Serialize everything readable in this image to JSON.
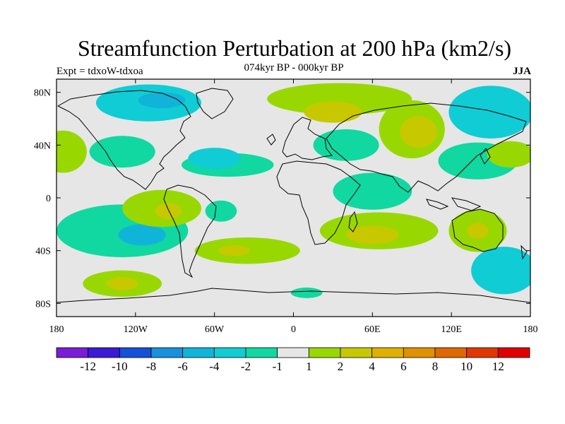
{
  "map": {
    "title": "Streamfunction Perturbation at 200 hPa (km2/s)",
    "subtitle": "074kyr BP - 000kyr BP",
    "left_note": "Expt = tdxoW-tdxoa",
    "right_note": "JJA",
    "projection": "cylindrical equidistant",
    "lon_range": [
      -180,
      180
    ],
    "lat_range": [
      -90,
      90
    ],
    "x_ticks": [
      {
        "lon": -180,
        "label": "180"
      },
      {
        "lon": -120,
        "label": "120W"
      },
      {
        "lon": -60,
        "label": "60W"
      },
      {
        "lon": 0,
        "label": "0"
      },
      {
        "lon": 60,
        "label": "60E"
      },
      {
        "lon": 120,
        "label": "120E"
      },
      {
        "lon": 180,
        "label": "180"
      }
    ],
    "y_ticks": [
      {
        "lat": 80,
        "label": "80N"
      },
      {
        "lat": 40,
        "label": "40N"
      },
      {
        "lat": 0,
        "label": "0"
      },
      {
        "lat": -40,
        "label": "40S"
      },
      {
        "lat": -80,
        "label": "80S"
      }
    ],
    "background_color": "#e6e6e6",
    "colorbar": {
      "colors": [
        "#7a1cd8",
        "#3a1ad6",
        "#1450d8",
        "#1890dc",
        "#10b4d8",
        "#10ccd4",
        "#10d8a0",
        "#e6e6e6",
        "#98d800",
        "#c8c800",
        "#e0b000",
        "#e09000",
        "#e06800",
        "#e03800",
        "#e00000"
      ],
      "labels": [
        "-12",
        "-10",
        "-8",
        "-6",
        "-4",
        "-2",
        "-1",
        "1",
        "2",
        "4",
        "6",
        "8",
        "10",
        "12"
      ]
    },
    "anomaly_regions": [
      {
        "level": "2",
        "lon": 35,
        "lat": 75,
        "rlon": 55,
        "rlat": 12
      },
      {
        "level": "4",
        "lon": 30,
        "lat": 65,
        "rlon": 22,
        "rlat": 8
      },
      {
        "level": "2",
        "lon": 90,
        "lat": 52,
        "rlon": 25,
        "rlat": 22
      },
      {
        "level": "4",
        "lon": 95,
        "lat": 50,
        "rlon": 14,
        "rlat": 12
      },
      {
        "level": "-2",
        "lon": -110,
        "lat": 72,
        "rlon": 40,
        "rlat": 14
      },
      {
        "level": "-4",
        "lon": -100,
        "lat": 74,
        "rlon": 18,
        "rlat": 6
      },
      {
        "level": "-2",
        "lon": 150,
        "lat": 65,
        "rlon": 32,
        "rlat": 20
      },
      {
        "level": "-1",
        "lon": -50,
        "lat": 25,
        "rlon": 35,
        "rlat": 9
      },
      {
        "level": "-1",
        "lon": 40,
        "lat": 40,
        "rlon": 25,
        "rlat": 12
      },
      {
        "level": "-1",
        "lon": 140,
        "lat": 28,
        "rlon": 30,
        "rlat": 14
      },
      {
        "level": "2",
        "lon": -175,
        "lat": 35,
        "rlon": 18,
        "rlat": 16
      },
      {
        "level": "-2",
        "lon": -60,
        "lat": 30,
        "rlon": 20,
        "rlat": 8
      },
      {
        "level": "2",
        "lon": 165,
        "lat": 33,
        "rlon": 18,
        "rlat": 10
      },
      {
        "level": "-1",
        "lon": -130,
        "lat": 35,
        "rlon": 25,
        "rlat": 12
      },
      {
        "level": "-1",
        "lon": 60,
        "lat": 5,
        "rlon": 30,
        "rlat": 14
      },
      {
        "level": "-1",
        "lon": -130,
        "lat": -25,
        "rlon": 50,
        "rlat": 20
      },
      {
        "level": "-4",
        "lon": -115,
        "lat": -28,
        "rlon": 18,
        "rlat": 8
      },
      {
        "level": "2",
        "lon": -100,
        "lat": -8,
        "rlon": 30,
        "rlat": 14
      },
      {
        "level": "4",
        "lon": -95,
        "lat": -10,
        "rlon": 10,
        "rlat": 6
      },
      {
        "level": "-1",
        "lon": -55,
        "lat": -10,
        "rlon": 12,
        "rlat": 8
      },
      {
        "level": "2",
        "lon": 65,
        "lat": -25,
        "rlon": 45,
        "rlat": 14
      },
      {
        "level": "4",
        "lon": 60,
        "lat": -28,
        "rlon": 20,
        "rlat": 7
      },
      {
        "level": "2",
        "lon": -35,
        "lat": -40,
        "rlon": 40,
        "rlat": 10
      },
      {
        "level": "4",
        "lon": -45,
        "lat": -40,
        "rlon": 12,
        "rlat": 4
      },
      {
        "level": "2",
        "lon": -130,
        "lat": -65,
        "rlon": 30,
        "rlat": 10
      },
      {
        "level": "4",
        "lon": -130,
        "lat": -65,
        "rlon": 12,
        "rlat": 5
      },
      {
        "level": "2",
        "lon": 140,
        "lat": -25,
        "rlon": 22,
        "rlat": 16
      },
      {
        "level": "4",
        "lon": 140,
        "lat": -25,
        "rlon": 8,
        "rlat": 6
      },
      {
        "level": "-2",
        "lon": 160,
        "lat": -55,
        "rlon": 25,
        "rlat": 18
      },
      {
        "level": "-1",
        "lon": 10,
        "lat": -72,
        "rlon": 12,
        "rlat": 4
      }
    ]
  }
}
